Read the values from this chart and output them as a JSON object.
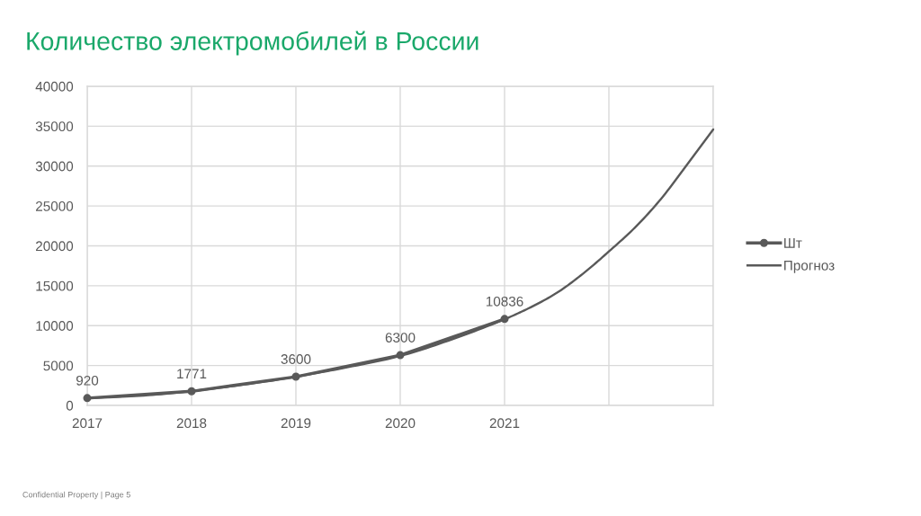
{
  "chart_data": {
    "type": "line",
    "title": "Количество электромобилей в России",
    "x": [
      2017,
      2018,
      2019,
      2020,
      2021
    ],
    "xlim": [
      2017,
      2023
    ],
    "xticks": [
      2017,
      2018,
      2019,
      2020,
      2021,
      {
        "value": 2022,
        "label": null
      },
      {
        "value": 2023,
        "label": null
      }
    ],
    "ylim": [
      0,
      40000
    ],
    "yticks": [
      0,
      5000,
      10000,
      15000,
      20000,
      25000,
      30000,
      35000,
      40000
    ],
    "grid": true,
    "legend": "right",
    "series": [
      {
        "name": "Шт",
        "color": "#595959",
        "marker": "circle",
        "data_labels": true,
        "values": [
          920,
          1771,
          3600,
          6300,
          10836
        ]
      },
      {
        "name": "Прогноз",
        "type": "line",
        "color": "#595959",
        "marker": "none",
        "x": [
          2017,
          2017.5,
          2018,
          2018.5,
          2019,
          2019.5,
          2020,
          2020.5,
          2021,
          2021.25,
          2021.5,
          2021.75,
          2022,
          2022.25,
          2022.5,
          2022.75,
          2023
        ],
        "values": [
          900,
          1200,
          1800,
          2600,
          3600,
          4800,
          6200,
          8300,
          10800,
          12300,
          14100,
          16500,
          19300,
          22300,
          25900,
          30200,
          34600
        ]
      }
    ],
    "annotations": [
      "Confidential Property | Page 5"
    ]
  }
}
